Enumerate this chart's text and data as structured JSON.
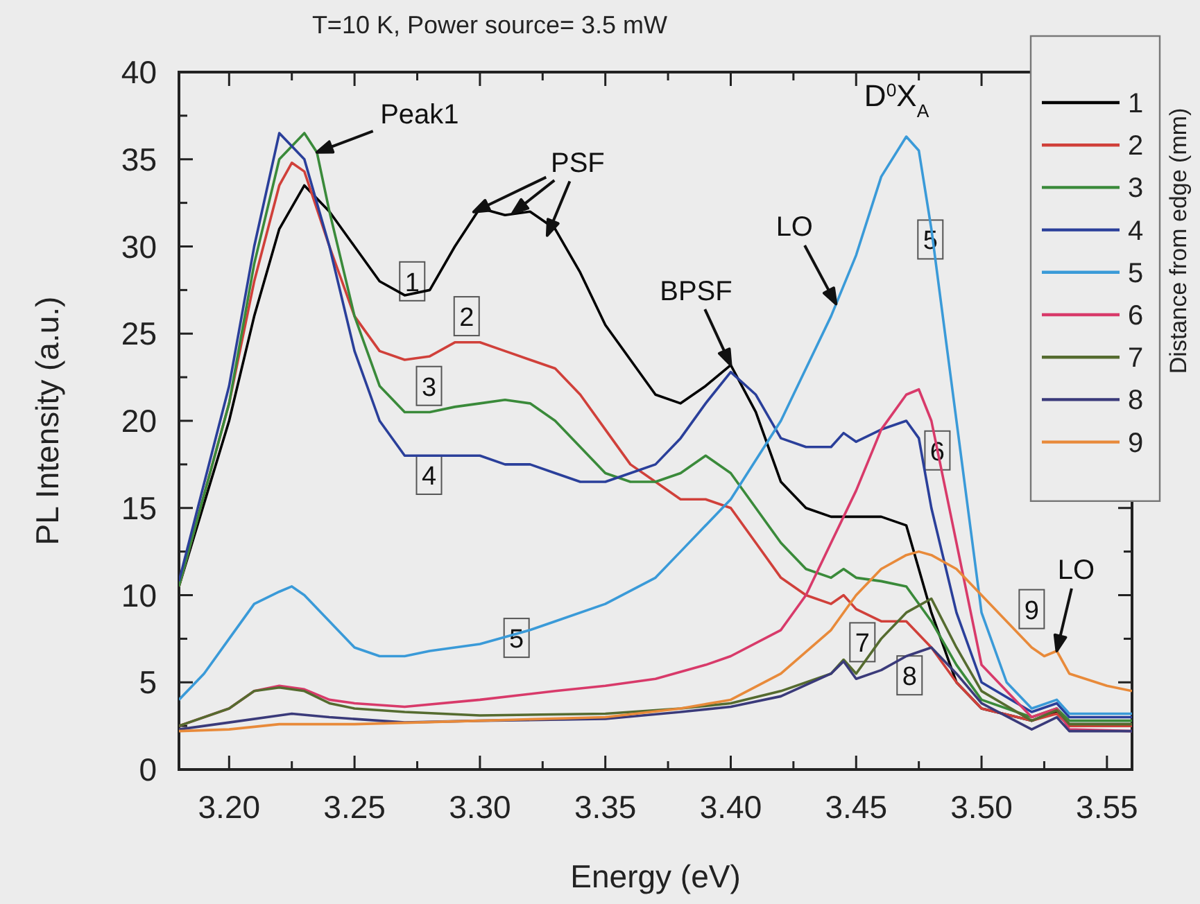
{
  "chart_data": {
    "type": "line",
    "title": "T=10 K, Power source= 3.5 mW",
    "xlabel": "Energy (eV)",
    "ylabel": "PL Intensity (a.u.)",
    "legend_title": "Distance from edge (mm)",
    "xlim": [
      3.18,
      3.56
    ],
    "ylim": [
      0,
      40
    ],
    "xticks": [
      {
        "value": 3.2,
        "label": "3.20"
      },
      {
        "value": 3.225,
        "label": null
      },
      {
        "value": 3.25,
        "label": "3.25"
      },
      {
        "value": 3.275,
        "label": null
      },
      {
        "value": 3.3,
        "label": "3.30"
      },
      {
        "value": 3.325,
        "label": null
      },
      {
        "value": 3.35,
        "label": "3.35"
      },
      {
        "value": 3.375,
        "label": null
      },
      {
        "value": 3.4,
        "label": "3.40"
      },
      {
        "value": 3.425,
        "label": null
      },
      {
        "value": 3.45,
        "label": "3.45"
      },
      {
        "value": 3.475,
        "label": null
      },
      {
        "value": 3.5,
        "label": "3.50"
      },
      {
        "value": 3.525,
        "label": null
      },
      {
        "value": 3.55,
        "label": "3.55"
      }
    ],
    "yticks": [
      0,
      {
        "value": 2.5,
        "label": null
      },
      5,
      {
        "value": 7.5,
        "label": null
      },
      10,
      {
        "value": 12.5,
        "label": null
      },
      15,
      {
        "value": 17.5,
        "label": null
      },
      20,
      {
        "value": 22.5,
        "label": null
      },
      25,
      {
        "value": 27.5,
        "label": null
      },
      30,
      {
        "value": 32.5,
        "label": null
      },
      35,
      {
        "value": 37.5,
        "label": null
      },
      40
    ],
    "grid": false,
    "legend": "top right",
    "marker": "none",
    "line_style": "solid",
    "series": [
      {
        "name": "1",
        "color": "#000000",
        "x": [
          3.18,
          3.2,
          3.21,
          3.22,
          3.23,
          3.24,
          3.25,
          3.26,
          3.27,
          3.28,
          3.29,
          3.3,
          3.31,
          3.32,
          3.33,
          3.34,
          3.35,
          3.36,
          3.37,
          3.38,
          3.39,
          3.4,
          3.41,
          3.42,
          3.43,
          3.44,
          3.45,
          3.46,
          3.47,
          3.48,
          3.49,
          3.5,
          3.52,
          3.53,
          3.535,
          3.56
        ],
        "values": [
          10.5,
          20,
          26,
          31,
          33.5,
          32,
          30,
          28,
          27.2,
          27.5,
          30,
          32.2,
          31.8,
          32,
          31,
          28.5,
          25.5,
          23.5,
          21.5,
          21,
          22,
          23.2,
          20.5,
          16.5,
          15,
          14.5,
          14.5,
          14.5,
          14,
          9,
          5,
          3.5,
          2.8,
          3.3,
          2.6,
          2.6
        ]
      },
      {
        "name": "2",
        "color": "#d0403a",
        "x": [
          3.18,
          3.2,
          3.21,
          3.22,
          3.225,
          3.23,
          3.24,
          3.25,
          3.26,
          3.27,
          3.28,
          3.29,
          3.3,
          3.31,
          3.32,
          3.33,
          3.34,
          3.35,
          3.36,
          3.37,
          3.38,
          3.39,
          3.4,
          3.41,
          3.42,
          3.43,
          3.44,
          3.445,
          3.45,
          3.46,
          3.47,
          3.48,
          3.49,
          3.5,
          3.52,
          3.53,
          3.535,
          3.56
        ],
        "values": [
          10.5,
          21,
          28,
          33.5,
          34.8,
          34.3,
          30,
          26,
          24,
          23.5,
          23.7,
          24.5,
          24.5,
          24,
          23.5,
          23,
          21.5,
          19.5,
          17.5,
          16.5,
          15.5,
          15.5,
          15,
          13,
          11,
          10,
          9.5,
          10,
          9.2,
          8.5,
          8.5,
          7,
          5,
          3.5,
          2.8,
          3.2,
          2.5,
          2.5
        ]
      },
      {
        "name": "3",
        "color": "#3a8a3a",
        "x": [
          3.18,
          3.2,
          3.21,
          3.22,
          3.23,
          3.235,
          3.24,
          3.25,
          3.26,
          3.27,
          3.28,
          3.29,
          3.3,
          3.31,
          3.32,
          3.33,
          3.34,
          3.35,
          3.36,
          3.37,
          3.38,
          3.39,
          3.4,
          3.41,
          3.42,
          3.43,
          3.44,
          3.445,
          3.45,
          3.46,
          3.47,
          3.48,
          3.49,
          3.5,
          3.52,
          3.53,
          3.535,
          3.56
        ],
        "values": [
          10.5,
          21,
          29,
          35,
          36.5,
          35.4,
          32,
          26,
          22,
          20.5,
          20.5,
          20.8,
          21,
          21.2,
          21,
          20,
          18.5,
          17,
          16.5,
          16.5,
          17,
          18,
          17,
          15,
          13,
          11.5,
          11,
          11.5,
          11,
          10.8,
          10.5,
          8.5,
          6,
          4,
          3,
          3.5,
          2.8,
          2.8
        ]
      },
      {
        "name": "4",
        "color": "#2a3f9a",
        "x": [
          3.18,
          3.2,
          3.21,
          3.22,
          3.23,
          3.24,
          3.25,
          3.26,
          3.27,
          3.28,
          3.29,
          3.3,
          3.31,
          3.32,
          3.33,
          3.34,
          3.35,
          3.36,
          3.37,
          3.38,
          3.39,
          3.4,
          3.41,
          3.42,
          3.43,
          3.44,
          3.445,
          3.45,
          3.46,
          3.47,
          3.475,
          3.48,
          3.49,
          3.5,
          3.52,
          3.53,
          3.535,
          3.56
        ],
        "values": [
          10.8,
          22,
          30,
          36.5,
          35,
          30,
          24,
          20,
          18,
          18,
          18,
          18,
          17.5,
          17.5,
          17,
          16.5,
          16.5,
          17,
          17.5,
          19,
          21,
          22.8,
          21.5,
          19,
          18.5,
          18.5,
          19.3,
          18.8,
          19.5,
          20,
          19,
          15,
          9,
          5,
          3.3,
          3.8,
          3,
          3
        ]
      },
      {
        "name": "5",
        "color": "#3a9ad8",
        "x": [
          3.18,
          3.19,
          3.2,
          3.21,
          3.22,
          3.225,
          3.23,
          3.24,
          3.25,
          3.26,
          3.27,
          3.28,
          3.3,
          3.32,
          3.33,
          3.35,
          3.37,
          3.38,
          3.4,
          3.42,
          3.43,
          3.44,
          3.45,
          3.46,
          3.47,
          3.475,
          3.48,
          3.49,
          3.5,
          3.51,
          3.52,
          3.53,
          3.535,
          3.56
        ],
        "values": [
          4,
          5.5,
          7.5,
          9.5,
          10.2,
          10.5,
          10,
          8.5,
          7,
          6.5,
          6.5,
          6.8,
          7.2,
          8,
          8.5,
          9.5,
          11,
          12.5,
          15.5,
          20,
          23,
          26,
          29.5,
          34,
          36.3,
          35.5,
          31,
          20,
          9,
          5,
          3.5,
          4,
          3.2,
          3.2
        ]
      },
      {
        "name": "6",
        "color": "#d83a6a",
        "x": [
          3.18,
          3.2,
          3.21,
          3.22,
          3.23,
          3.24,
          3.25,
          3.27,
          3.3,
          3.33,
          3.35,
          3.37,
          3.39,
          3.4,
          3.42,
          3.43,
          3.44,
          3.45,
          3.46,
          3.47,
          3.475,
          3.48,
          3.49,
          3.5,
          3.52,
          3.53,
          3.535,
          3.56
        ],
        "values": [
          2.5,
          3.5,
          4.5,
          4.8,
          4.6,
          4,
          3.8,
          3.6,
          4,
          4.5,
          4.8,
          5.2,
          6,
          6.5,
          8,
          10,
          13,
          16,
          19.5,
          21.5,
          21.8,
          20,
          13,
          6,
          3,
          3.5,
          2.3,
          2.2
        ]
      },
      {
        "name": "7",
        "color": "#556b2f",
        "x": [
          3.18,
          3.2,
          3.21,
          3.22,
          3.23,
          3.24,
          3.25,
          3.27,
          3.3,
          3.35,
          3.38,
          3.4,
          3.42,
          3.44,
          3.445,
          3.45,
          3.46,
          3.47,
          3.48,
          3.49,
          3.5,
          3.52,
          3.53,
          3.535,
          3.56
        ],
        "values": [
          2.5,
          3.5,
          4.5,
          4.7,
          4.5,
          3.8,
          3.5,
          3.3,
          3.1,
          3.2,
          3.5,
          3.8,
          4.5,
          5.5,
          6.3,
          5.5,
          7.5,
          9,
          9.8,
          7,
          4.5,
          2.8,
          3.4,
          2.6,
          2.6
        ]
      },
      {
        "name": "8",
        "color": "#3a3a7a",
        "x": [
          3.18,
          3.2,
          3.22,
          3.225,
          3.24,
          3.27,
          3.3,
          3.35,
          3.38,
          3.4,
          3.42,
          3.44,
          3.445,
          3.45,
          3.46,
          3.47,
          3.48,
          3.49,
          3.5,
          3.52,
          3.53,
          3.535,
          3.56
        ],
        "values": [
          2.3,
          2.7,
          3.1,
          3.2,
          3,
          2.7,
          2.8,
          2.9,
          3.3,
          3.6,
          4.2,
          5.5,
          6.2,
          5.2,
          5.7,
          6.5,
          7,
          5.5,
          3.8,
          2.3,
          3,
          2.2,
          2.2
        ]
      },
      {
        "name": "9",
        "color": "#e88a3a",
        "x": [
          3.18,
          3.2,
          3.22,
          3.25,
          3.3,
          3.35,
          3.38,
          3.4,
          3.42,
          3.44,
          3.45,
          3.46,
          3.47,
          3.475,
          3.48,
          3.49,
          3.5,
          3.51,
          3.52,
          3.525,
          3.53,
          3.535,
          3.55,
          3.56
        ],
        "values": [
          2.2,
          2.3,
          2.6,
          2.6,
          2.8,
          3,
          3.5,
          4,
          5.5,
          8,
          10,
          11.5,
          12.3,
          12.5,
          12.3,
          11.5,
          10,
          8.5,
          7,
          6.5,
          6.8,
          5.5,
          4.8,
          4.5
        ]
      }
    ],
    "annotations": [
      {
        "text": "Peak1",
        "x": 3.235,
        "y": 35.4
      },
      {
        "text": "PSF",
        "x": 3.313,
        "y": 31.9
      },
      {
        "text": "LO",
        "x": 3.442,
        "y": 26.7
      },
      {
        "text": "BPSF",
        "x": 3.4,
        "y": 23.2
      },
      {
        "text": "D$^{0}$X$_{A}$",
        "x": 3.47,
        "y": 36.3
      },
      {
        "text": "LO",
        "x": 3.53,
        "y": 6.8
      },
      {
        "text": "1",
        "x": 3.273,
        "y": 28
      },
      {
        "text": "2",
        "x": 3.2947,
        "y": 26
      },
      {
        "text": "3",
        "x": 3.2797,
        "y": 22
      },
      {
        "text": "4",
        "x": 3.2797,
        "y": 16.9
      },
      {
        "text": "5",
        "x": 3.3146,
        "y": 7.55
      },
      {
        "text": "5",
        "x": 3.4796,
        "y": 30.4
      },
      {
        "text": "6",
        "x": 3.4824,
        "y": 18.3
      },
      {
        "text": "7",
        "x": 3.4525,
        "y": 7.3
      },
      {
        "text": "8",
        "x": 3.4713,
        "y": 5.4
      },
      {
        "text": "9",
        "x": 3.52,
        "y": 9.2
      }
    ]
  }
}
